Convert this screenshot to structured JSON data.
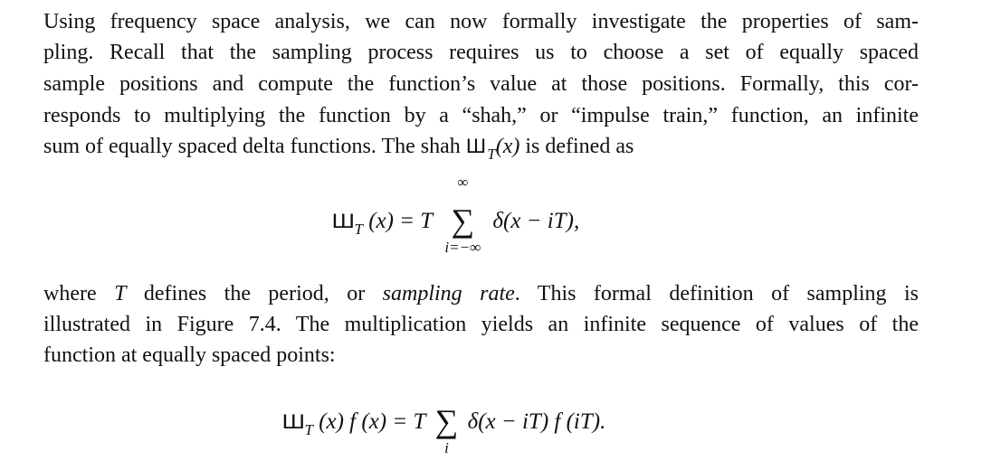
{
  "paragraph1": {
    "lines": [
      "Using frequency space analysis, we can now formally investigate the properties of sam-",
      "pling. Recall that the sampling process requires us to choose a set of equally spaced",
      "sample positions and compute the function’s value at those positions. Formally, this cor-",
      "responds to multiplying the function by a “shah,” or “impulse train,” function, an infinite"
    ],
    "last_line_before": "sum of equally spaced delta functions. The shah ",
    "last_line_symbol": "Ш",
    "last_line_sub": "T",
    "last_line_arg": "(x)",
    "last_line_after": " is defined as"
  },
  "equation1": {
    "lhs_symbol": "Ш",
    "lhs_sub": "T",
    "lhs_rest": "(x) = T",
    "sigma": "∑",
    "upper": "∞",
    "lower": "i=−∞",
    "rhs": "δ(x − iT),"
  },
  "paragraph2": {
    "line1_a": "where ",
    "line1_T": "T",
    "line1_b": " defines the period, or ",
    "line1_em": "sampling rate",
    "line1_c": ". This formal definition of sampling is",
    "line2": "illustrated in Figure 7.4. The multiplication yields an infinite sequence of values of the",
    "line3": "function at equally spaced points:"
  },
  "equation2": {
    "lhs_symbol": "Ш",
    "lhs_sub": "T",
    "lhs_rest": "(x) f (x) = T",
    "sigma": "∑",
    "lower": "i",
    "rhs": "δ(x − iT) f (iT)."
  }
}
